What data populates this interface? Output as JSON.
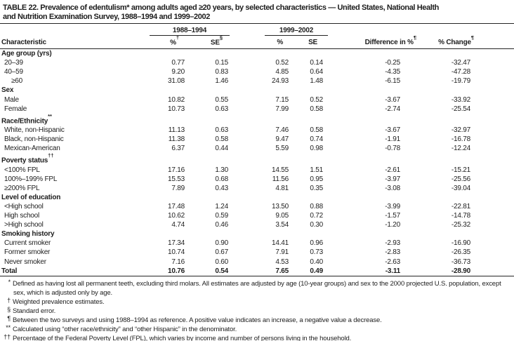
{
  "title": {
    "line1": "TABLE 22. Prevalence of edentulism* among adults aged ≥20 years, by selected characteristics — United States, National Health",
    "line2": "and Nutrition Examination Survey, 1988–1994 and 1999–2002"
  },
  "table": {
    "groups": [
      "1988–1994",
      "1999–2002"
    ],
    "columns": [
      {
        "text": "Characteristic",
        "sup": ""
      },
      {
        "text": "%",
        "sup": "†"
      },
      {
        "text": "SE",
        "sup": "§"
      },
      {
        "text": "%",
        "sup": ""
      },
      {
        "text": "SE",
        "sup": ""
      },
      {
        "text": "Difference in %",
        "sup": "¶"
      },
      {
        "text": "% Change",
        "sup": "¶"
      }
    ],
    "rows": [
      {
        "type": "section",
        "label": "Age group (yrs)",
        "sup": ""
      },
      {
        "type": "data",
        "label": "20–39",
        "indent": false,
        "values": [
          "0.77",
          "0.15",
          "0.52",
          "0.14",
          "-0.25",
          "-32.47"
        ]
      },
      {
        "type": "data",
        "label": "40–59",
        "indent": false,
        "values": [
          "9.20",
          "0.83",
          "4.85",
          "0.64",
          "-4.35",
          "-47.28"
        ]
      },
      {
        "type": "data",
        "label": "≥60",
        "indent": true,
        "values": [
          "31.08",
          "1.46",
          "24.93",
          "1.48",
          "-6.15",
          "-19.79"
        ]
      },
      {
        "type": "section",
        "label": "Sex",
        "sup": ""
      },
      {
        "type": "data",
        "label": "Male",
        "indent": false,
        "values": [
          "10.82",
          "0.55",
          "7.15",
          "0.52",
          "-3.67",
          "-33.92"
        ]
      },
      {
        "type": "data",
        "label": "Female",
        "indent": false,
        "values": [
          "10.73",
          "0.63",
          "7.99",
          "0.58",
          "-2.74",
          "-25.54"
        ]
      },
      {
        "type": "section",
        "label": "Race/Ethnicity",
        "sup": "**"
      },
      {
        "type": "data",
        "label": "White, non-Hispanic",
        "indent": false,
        "values": [
          "11.13",
          "0.63",
          "7.46",
          "0.58",
          "-3.67",
          "-32.97"
        ]
      },
      {
        "type": "data",
        "label": "Black, non-Hispanic",
        "indent": false,
        "values": [
          "11.38",
          "0.58",
          "9.47",
          "0.74",
          "-1.91",
          "-16.78"
        ]
      },
      {
        "type": "data",
        "label": "Mexican-American",
        "indent": false,
        "values": [
          "6.37",
          "0.44",
          "5.59",
          "0.98",
          "-0.78",
          "-12.24"
        ]
      },
      {
        "type": "section",
        "label": "Poverty status",
        "sup": "††"
      },
      {
        "type": "data",
        "label": "<100% FPL",
        "indent": false,
        "values": [
          "17.16",
          "1.30",
          "14.55",
          "1.51",
          "-2.61",
          "-15.21"
        ]
      },
      {
        "type": "data",
        "label": "100%–199% FPL",
        "indent": false,
        "values": [
          "15.53",
          "0.68",
          "11.56",
          "0.95",
          "-3.97",
          "-25.56"
        ]
      },
      {
        "type": "data",
        "label": "≥200% FPL",
        "indent": false,
        "values": [
          "7.89",
          "0.43",
          "4.81",
          "0.35",
          "-3.08",
          "-39.04"
        ]
      },
      {
        "type": "section",
        "label": "Level of education",
        "sup": ""
      },
      {
        "type": "data",
        "label": "<High school",
        "indent": false,
        "values": [
          "17.48",
          "1.24",
          "13.50",
          "0.88",
          "-3.99",
          "-22.81"
        ]
      },
      {
        "type": "data",
        "label": "High school",
        "indent": false,
        "values": [
          "10.62",
          "0.59",
          "9.05",
          "0.72",
          "-1.57",
          "-14.78"
        ]
      },
      {
        "type": "data",
        "label": ">High school",
        "indent": false,
        "values": [
          "4.74",
          "0.46",
          "3.54",
          "0.30",
          "-1.20",
          "-25.32"
        ]
      },
      {
        "type": "section",
        "label": "Smoking history",
        "sup": ""
      },
      {
        "type": "data",
        "label": "Current smoker",
        "indent": false,
        "values": [
          "17.34",
          "0.90",
          "14.41",
          "0.96",
          "-2.93",
          "-16.90"
        ]
      },
      {
        "type": "data",
        "label": "Former smoker",
        "indent": false,
        "values": [
          "10.74",
          "0.67",
          "7.91",
          "0.73",
          "-2.83",
          "-26.35"
        ]
      },
      {
        "type": "data",
        "label": "Never smoker",
        "indent": false,
        "values": [
          "7.16",
          "0.60",
          "4.53",
          "0.40",
          "-2.63",
          "-36.73"
        ]
      },
      {
        "type": "total",
        "label": "Total",
        "indent": false,
        "values": [
          "10.76",
          "0.54",
          "7.65",
          "0.49",
          "-3.11",
          "-28.90"
        ]
      }
    ]
  },
  "footnotes": [
    {
      "marker": "*",
      "text": "Defined as having lost all permanent teeth, excluding third molars. All estimates are adjusted by age (10-year groups) and sex to the 2000 projected U.S. population, except sex, which is adjusted only by age."
    },
    {
      "marker": "†",
      "text": "Weighted prevalence estimates."
    },
    {
      "marker": "§",
      "text": "Standard error."
    },
    {
      "marker": "¶",
      "text": "Between the two surveys and using 1988–1994 as reference. A positive value indicates an increase, a negative value a decrease."
    },
    {
      "marker": "**",
      "text": "Calculated using “other race/ethnicity” and “other Hispanic” in the denominator."
    },
    {
      "marker": "††",
      "text": "Percentage of the Federal Poverty Level (FPL), which varies by income and number of persons living in the household."
    }
  ]
}
